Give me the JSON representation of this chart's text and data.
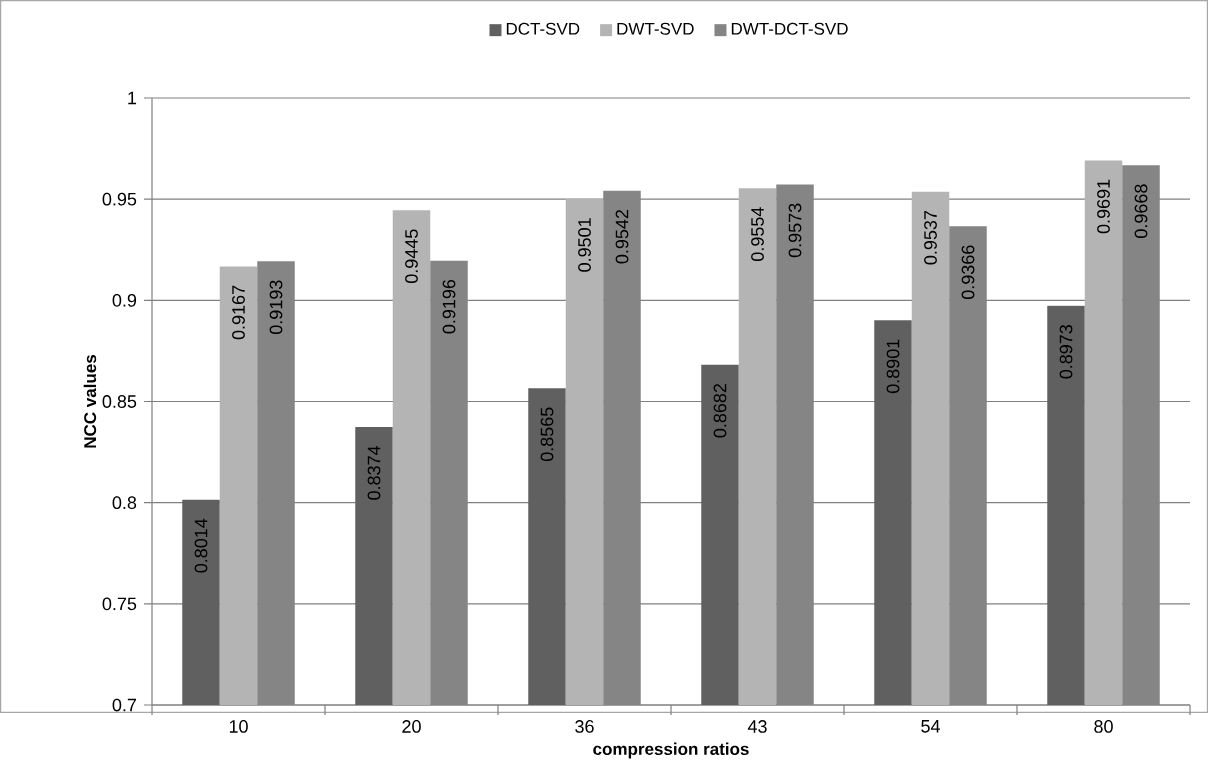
{
  "chart_data": {
    "type": "bar",
    "xlabel": "compression ratios",
    "ylabel": "NCC values",
    "categories": [
      "10",
      "20",
      "36",
      "43",
      "54",
      "80"
    ],
    "series": [
      {
        "name": "DCT-SVD",
        "color": "#606060",
        "values": [
          0.8014,
          0.8374,
          0.8565,
          0.8682,
          0.8901,
          0.8973
        ]
      },
      {
        "name": "DWT-SVD",
        "color": "#b4b4b4",
        "values": [
          0.9167,
          0.9445,
          0.9501,
          0.9554,
          0.9537,
          0.9691
        ]
      },
      {
        "name": "DWT-DCT-SVD",
        "color": "#858585",
        "values": [
          0.9193,
          0.9196,
          0.9542,
          0.9573,
          0.9366,
          0.9668
        ]
      }
    ],
    "ylim": [
      0.7,
      1
    ],
    "yticks": [
      0.7,
      0.75,
      0.8,
      0.85,
      0.9,
      0.95,
      1
    ],
    "grid": "y",
    "legend": "top",
    "data_labels": true
  }
}
